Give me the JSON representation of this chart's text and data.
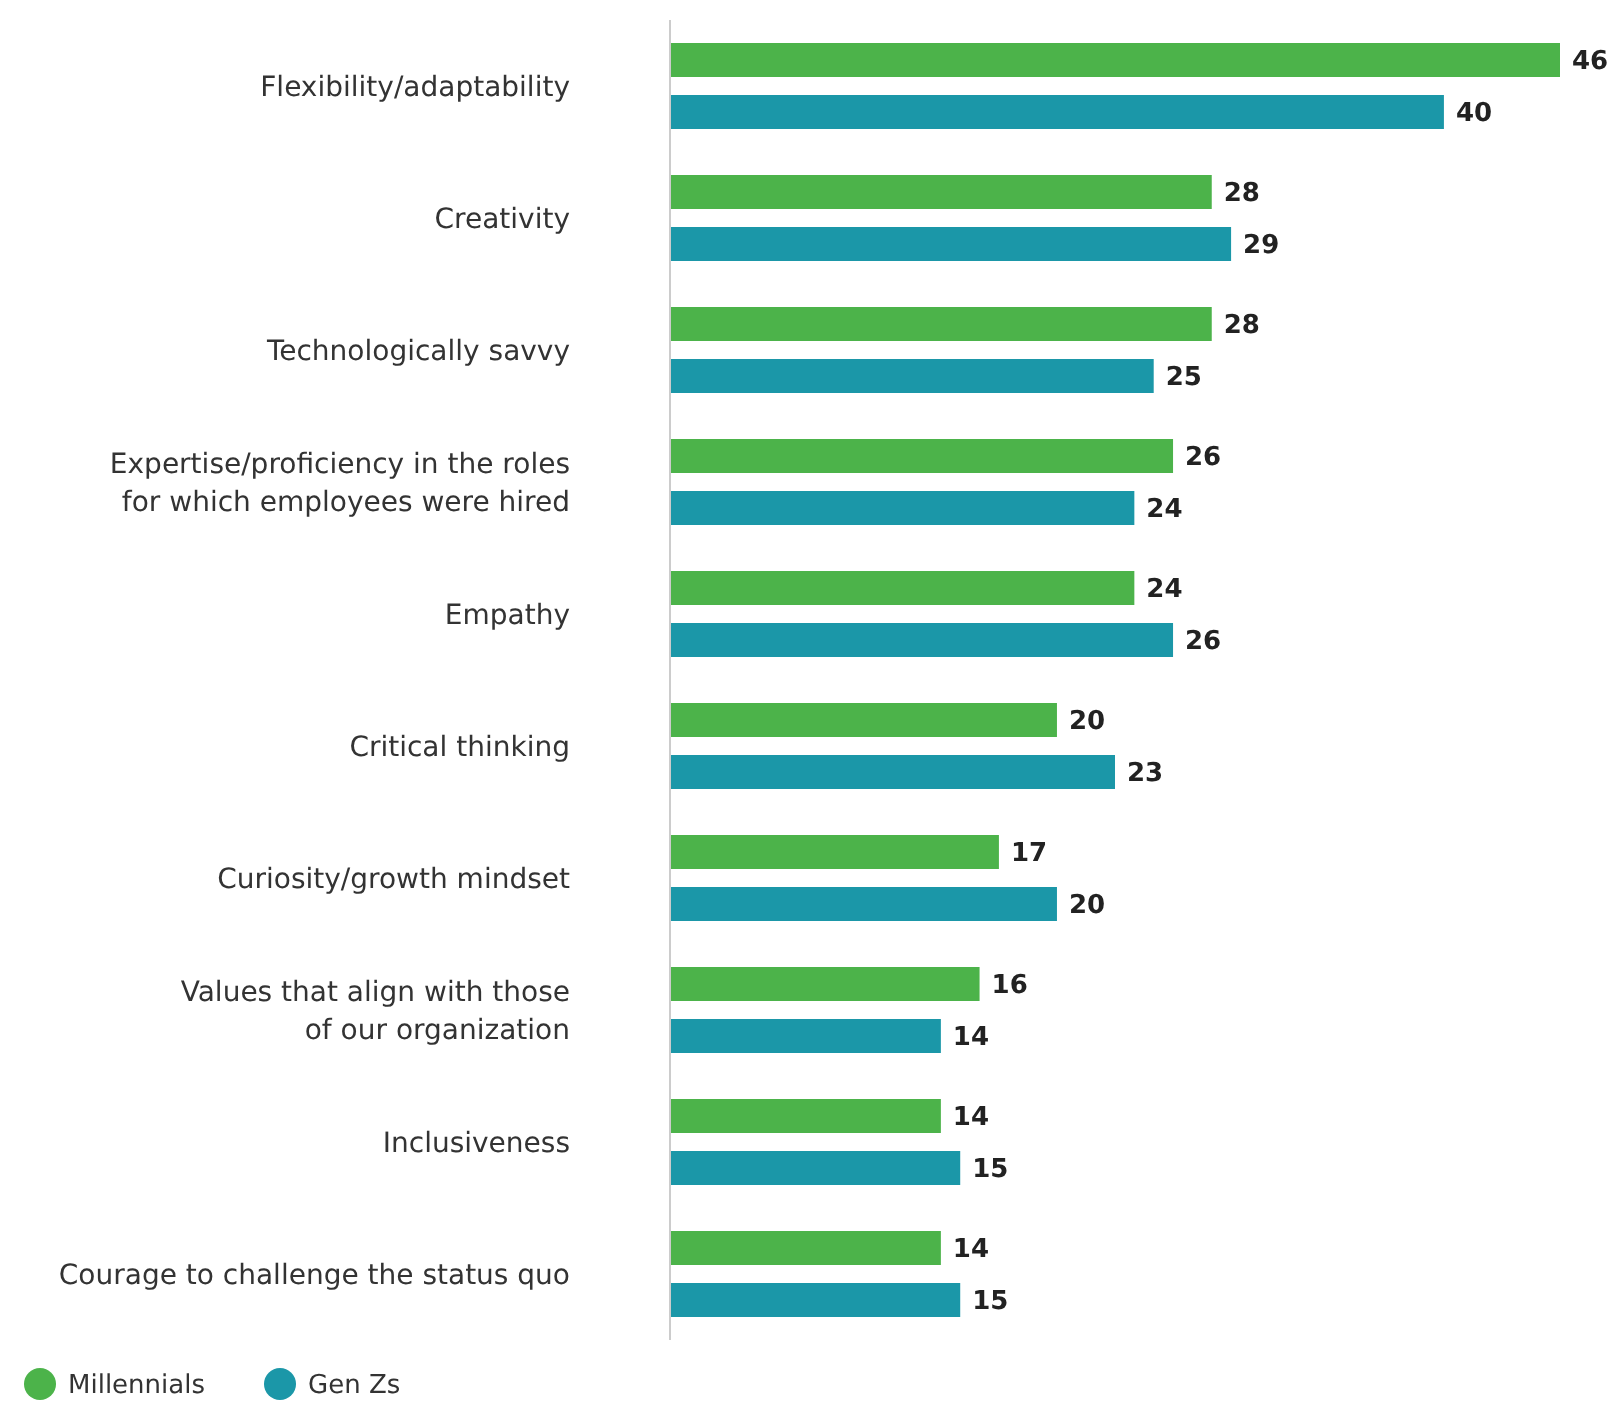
{
  "chart_data": {
    "type": "bar",
    "orientation": "horizontal",
    "data_labels": true,
    "legend": "bottom left",
    "categories": [
      "Flexibility/adaptability",
      "Creativity",
      "Technologically savvy",
      "Expertise/proficiency in the roles\nfor which employees were hired",
      "Empathy",
      "Critical thinking",
      "Curiosity/growth mindset",
      "Values that align with those\nof our organization",
      "Inclusiveness",
      "Courage to challenge the status quo"
    ],
    "series": [
      {
        "name": "Millennials",
        "color": "#4cb34a",
        "values": [
          46,
          28,
          28,
          26,
          24,
          20,
          17,
          16,
          14,
          14
        ]
      },
      {
        "name": "Gen Zs",
        "color": "#1b97a8",
        "values": [
          40,
          29,
          25,
          24,
          26,
          23,
          20,
          14,
          15,
          15
        ]
      }
    ]
  }
}
